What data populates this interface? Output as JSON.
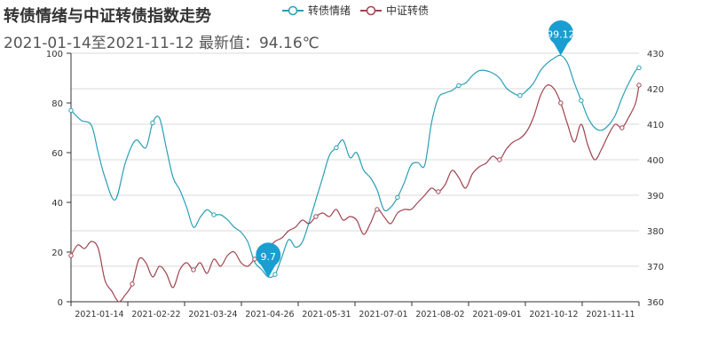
{
  "title": "转债情绪与中证转债指数走势",
  "subtitle": "2021-01-14至2021-11-12 最新值：94.16℃",
  "legend": [
    {
      "name": "转债情绪",
      "color": "#2a9fb5"
    },
    {
      "name": "中证转债",
      "color": "#a0444f"
    }
  ],
  "chart_data": {
    "type": "line",
    "x_ticks": [
      "2021-01-14",
      "2021-02-22",
      "2021-03-24",
      "2021-04-26",
      "2021-05-31",
      "2021-07-01",
      "2021-08-02",
      "2021-09-01",
      "2021-10-12",
      "2021-11-11"
    ],
    "y_left": {
      "min": 0,
      "max": 100,
      "ticks": [
        0,
        20,
        40,
        60,
        80,
        100
      ]
    },
    "y_right": {
      "min": 360,
      "max": 430,
      "ticks": [
        360,
        370,
        380,
        390,
        400,
        410,
        420,
        430
      ]
    },
    "series": [
      {
        "name": "转债情绪",
        "axis": "left",
        "color": "#2a9fb5",
        "points": [
          [
            0,
            77
          ],
          [
            3,
            73
          ],
          [
            6,
            71
          ],
          [
            8,
            60
          ],
          [
            10,
            50
          ],
          [
            13,
            41
          ],
          [
            16,
            56
          ],
          [
            19,
            65
          ],
          [
            22,
            62
          ],
          [
            24,
            72
          ],
          [
            26,
            74
          ],
          [
            28,
            62
          ],
          [
            30,
            50
          ],
          [
            32,
            45
          ],
          [
            34,
            38
          ],
          [
            36,
            30
          ],
          [
            38,
            34
          ],
          [
            40,
            37
          ],
          [
            42,
            35
          ],
          [
            44,
            35
          ],
          [
            46,
            33
          ],
          [
            48,
            30
          ],
          [
            50,
            28
          ],
          [
            52,
            24
          ],
          [
            54,
            16
          ],
          [
            56,
            13
          ],
          [
            58,
            10
          ],
          [
            60,
            11
          ],
          [
            62,
            18
          ],
          [
            64,
            25
          ],
          [
            66,
            22
          ],
          [
            68,
            24
          ],
          [
            70,
            32
          ],
          [
            72,
            41
          ],
          [
            74,
            50
          ],
          [
            76,
            59
          ],
          [
            78,
            62
          ],
          [
            80,
            65
          ],
          [
            82,
            58
          ],
          [
            84,
            60
          ],
          [
            86,
            53
          ],
          [
            88,
            50
          ],
          [
            90,
            45
          ],
          [
            92,
            37
          ],
          [
            94,
            38
          ],
          [
            96,
            42
          ],
          [
            98,
            48
          ],
          [
            100,
            55
          ],
          [
            102,
            56
          ],
          [
            104,
            55
          ],
          [
            106,
            72
          ],
          [
            108,
            82
          ],
          [
            110,
            84
          ],
          [
            112,
            85
          ],
          [
            114,
            87
          ],
          [
            116,
            88
          ],
          [
            118,
            91
          ],
          [
            120,
            93
          ],
          [
            122,
            93
          ],
          [
            124,
            92
          ],
          [
            126,
            90
          ],
          [
            128,
            86
          ],
          [
            130,
            84
          ],
          [
            132,
            83
          ],
          [
            134,
            85
          ],
          [
            136,
            88
          ],
          [
            138,
            93
          ],
          [
            140,
            96
          ],
          [
            142,
            98
          ],
          [
            144,
            99.12
          ],
          [
            146,
            96
          ],
          [
            148,
            88
          ],
          [
            150,
            81
          ],
          [
            152,
            74
          ],
          [
            154,
            70
          ],
          [
            156,
            69
          ],
          [
            158,
            71
          ],
          [
            160,
            75
          ],
          [
            162,
            82
          ],
          [
            164,
            88
          ],
          [
            166,
            93
          ],
          [
            167,
            94.16
          ]
        ]
      },
      {
        "name": "中证转债",
        "axis": "right",
        "color": "#a0444f",
        "points": [
          [
            0,
            373
          ],
          [
            2,
            376
          ],
          [
            4,
            375
          ],
          [
            6,
            377
          ],
          [
            8,
            375
          ],
          [
            10,
            366
          ],
          [
            12,
            363
          ],
          [
            14,
            360
          ],
          [
            16,
            362
          ],
          [
            18,
            365
          ],
          [
            20,
            372
          ],
          [
            22,
            371
          ],
          [
            24,
            367
          ],
          [
            26,
            370
          ],
          [
            28,
            368
          ],
          [
            30,
            364
          ],
          [
            32,
            369
          ],
          [
            34,
            371
          ],
          [
            36,
            369
          ],
          [
            38,
            371
          ],
          [
            40,
            368
          ],
          [
            42,
            372
          ],
          [
            44,
            370
          ],
          [
            46,
            373
          ],
          [
            48,
            374
          ],
          [
            50,
            371
          ],
          [
            52,
            370
          ],
          [
            54,
            372
          ],
          [
            56,
            373
          ],
          [
            58,
            375
          ],
          [
            60,
            377
          ],
          [
            62,
            378
          ],
          [
            64,
            380
          ],
          [
            66,
            381
          ],
          [
            68,
            383
          ],
          [
            70,
            382
          ],
          [
            72,
            384
          ],
          [
            74,
            385
          ],
          [
            76,
            384
          ],
          [
            78,
            386
          ],
          [
            80,
            383
          ],
          [
            82,
            384
          ],
          [
            84,
            383
          ],
          [
            86,
            379
          ],
          [
            88,
            382
          ],
          [
            90,
            386
          ],
          [
            92,
            384
          ],
          [
            94,
            382
          ],
          [
            96,
            385
          ],
          [
            98,
            386
          ],
          [
            100,
            386
          ],
          [
            102,
            388
          ],
          [
            104,
            390
          ],
          [
            106,
            392
          ],
          [
            108,
            391
          ],
          [
            110,
            393
          ],
          [
            112,
            397
          ],
          [
            114,
            395
          ],
          [
            116,
            392
          ],
          [
            118,
            396
          ],
          [
            120,
            398
          ],
          [
            122,
            399
          ],
          [
            124,
            401
          ],
          [
            126,
            400
          ],
          [
            128,
            403
          ],
          [
            130,
            405
          ],
          [
            132,
            406
          ],
          [
            134,
            408
          ],
          [
            136,
            412
          ],
          [
            138,
            418
          ],
          [
            140,
            421
          ],
          [
            142,
            420
          ],
          [
            144,
            416
          ],
          [
            146,
            410
          ],
          [
            148,
            405
          ],
          [
            150,
            410
          ],
          [
            152,
            404
          ],
          [
            154,
            400
          ],
          [
            156,
            403
          ],
          [
            158,
            407
          ],
          [
            160,
            410
          ],
          [
            162,
            409
          ],
          [
            164,
            412
          ],
          [
            166,
            416
          ],
          [
            167,
            421
          ]
        ]
      }
    ],
    "x_count": 168,
    "annotations": [
      {
        "series": 0,
        "index": 58,
        "value": 9.7,
        "label": "9.7"
      },
      {
        "series": 0,
        "index": 144,
        "value": 99.12,
        "label": "99.12"
      }
    ],
    "pin_color": "#1a9ed2"
  }
}
